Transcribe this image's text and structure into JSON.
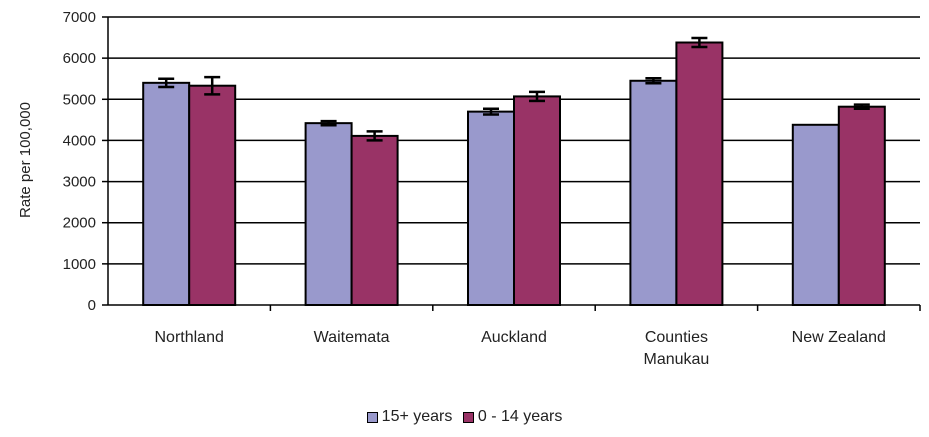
{
  "chart_data": {
    "type": "bar",
    "title": "",
    "xlabel": "",
    "ylabel": "Rate per 100,000",
    "ylim": [
      0,
      7000
    ],
    "yticks": [
      0,
      1000,
      2000,
      3000,
      4000,
      5000,
      6000,
      7000
    ],
    "categories": [
      "Northland",
      "Waitemata",
      "Auckland",
      "Counties\nManukau",
      "New Zealand"
    ],
    "series": [
      {
        "name": "15+ years",
        "color": "#9999cc",
        "values": [
          5400,
          4420,
          4700,
          5450,
          4380
        ],
        "error": [
          100,
          50,
          70,
          60,
          0
        ]
      },
      {
        "name": "0 - 14 years",
        "color": "#993366",
        "values": [
          5330,
          4110,
          5070,
          6380,
          4820
        ],
        "error": [
          210,
          110,
          110,
          110,
          50
        ]
      }
    ],
    "grid": true,
    "legend_position": "bottom",
    "error_bars": true
  }
}
